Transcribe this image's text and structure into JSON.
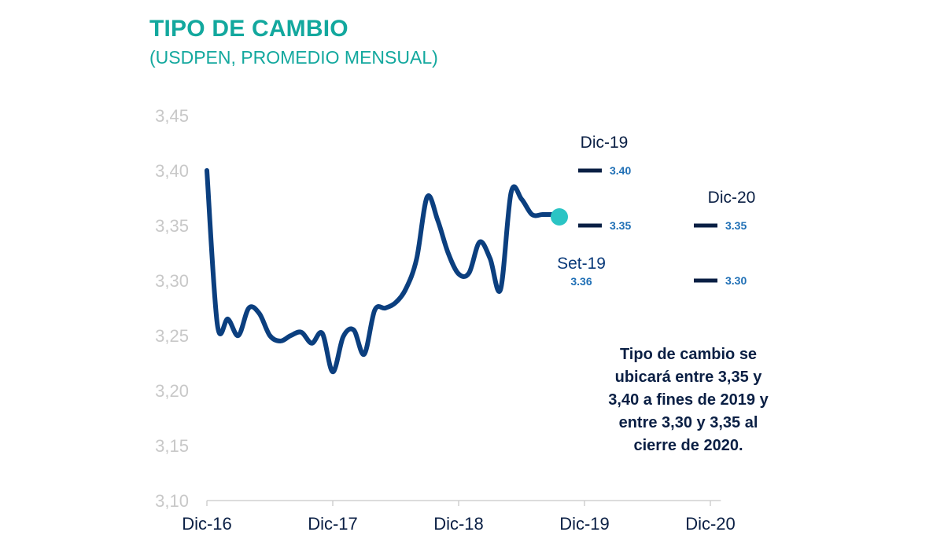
{
  "title": "TIPO DE CAMBIO",
  "subtitle": "(USDPEN, PROMEDIO MENSUAL)",
  "note": "Tipo de cambio se ubicará entre 3,35 y 3,40 a fines de 2019 y entre 3,30 y 3,35 al cierre de 2020.",
  "colors": {
    "title": "#13a89e",
    "line": "#0b3f7f",
    "marker": "#2bc4c4",
    "forecast": "#0a1f44",
    "value_label": "#1f6fb5",
    "axis_label": "#c8c8c8"
  },
  "chart_data": {
    "type": "line",
    "title": "TIPO DE CAMBIO",
    "subtitle": "(USDPEN, PROMEDIO MENSUAL)",
    "xlabel": "",
    "ylabel": "",
    "ylim": [
      3.1,
      3.45
    ],
    "yticks": [
      3.1,
      3.15,
      3.2,
      3.25,
      3.3,
      3.35,
      3.4,
      3.45
    ],
    "ytick_labels": [
      "3,10",
      "3,15",
      "3,20",
      "3,25",
      "3,30",
      "3,35",
      "3,40",
      "3,45"
    ],
    "xticks": [
      0,
      12,
      24,
      36,
      48
    ],
    "xtick_labels": [
      "Dic-16",
      "Dic-17",
      "Dic-18",
      "Dic-19",
      "Dic-20"
    ],
    "xlim": [
      0,
      49
    ],
    "grid": false,
    "series": [
      {
        "name": "USDPEN",
        "x": [
          0,
          1,
          2,
          3,
          4,
          5,
          6,
          7,
          8,
          9,
          10,
          11,
          12,
          13,
          14,
          15,
          16,
          17,
          18,
          19,
          20,
          21,
          22,
          23,
          24,
          25,
          26,
          27,
          28,
          29,
          30,
          31,
          32,
          33
        ],
        "values": [
          3.4,
          3.26,
          3.265,
          3.25,
          3.275,
          3.27,
          3.25,
          3.245,
          3.25,
          3.253,
          3.243,
          3.252,
          3.217,
          3.249,
          3.255,
          3.233,
          3.273,
          3.275,
          3.28,
          3.293,
          3.32,
          3.376,
          3.355,
          3.325,
          3.306,
          3.307,
          3.335,
          3.32,
          3.292,
          3.38,
          3.374,
          3.36,
          3.36,
          3.36
        ]
      }
    ],
    "marker": {
      "label": "Set-19",
      "value": 3.36,
      "value_label": "3.36",
      "x": 33
    },
    "forecasts": [
      {
        "label": "Dic-19",
        "x": 36,
        "values": [
          3.4,
          3.35
        ],
        "value_labels": [
          "3.40",
          "3.35"
        ]
      },
      {
        "label": "Dic-20",
        "x": 48,
        "values": [
          3.35,
          3.3
        ],
        "value_labels": [
          "3.35",
          "3.30"
        ]
      }
    ]
  }
}
